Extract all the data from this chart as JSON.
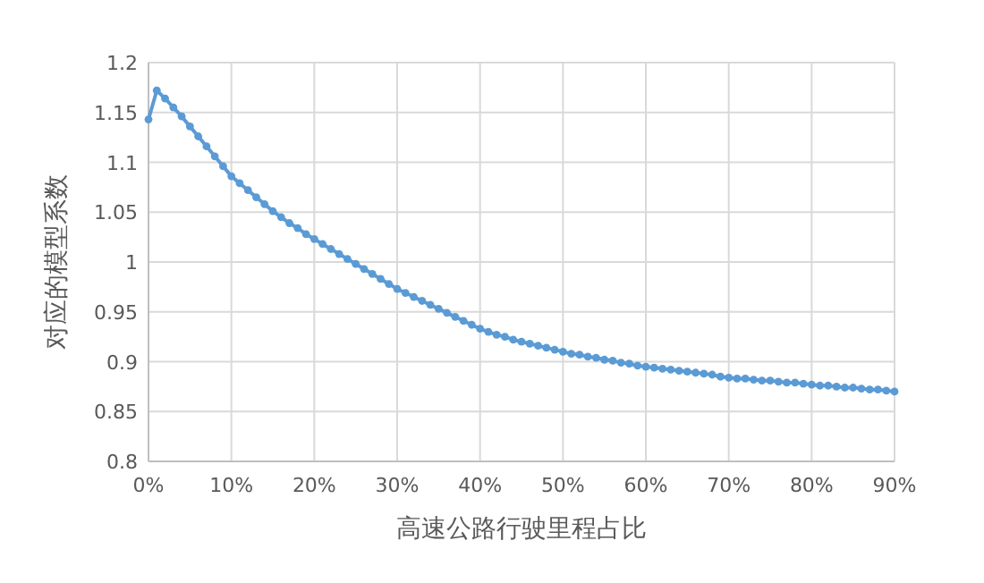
{
  "chart_data": {
    "type": "line",
    "xlabel": "高速公路行驶里程占比",
    "ylabel": "对应的模型系数",
    "x": [
      0,
      1,
      2,
      3,
      4,
      5,
      6,
      7,
      8,
      9,
      10,
      11,
      12,
      13,
      14,
      15,
      16,
      17,
      18,
      19,
      20,
      21,
      22,
      23,
      24,
      25,
      26,
      27,
      28,
      29,
      30,
      31,
      32,
      33,
      34,
      35,
      36,
      37,
      38,
      39,
      40,
      41,
      42,
      43,
      44,
      45,
      46,
      47,
      48,
      49,
      50,
      51,
      52,
      53,
      54,
      55,
      56,
      57,
      58,
      59,
      60,
      61,
      62,
      63,
      64,
      65,
      66,
      67,
      68,
      69,
      70,
      71,
      72,
      73,
      74,
      75,
      76,
      77,
      78,
      79,
      80,
      81,
      82,
      83,
      84,
      85,
      86,
      87,
      88,
      89,
      90
    ],
    "series": [
      {
        "color": "#5b9bd5",
        "values": [
          1.143,
          1.172,
          1.164,
          1.155,
          1.146,
          1.136,
          1.126,
          1.116,
          1.106,
          1.096,
          1.086,
          1.079,
          1.072,
          1.065,
          1.058,
          1.051,
          1.045,
          1.039,
          1.034,
          1.028,
          1.023,
          1.018,
          1.013,
          1.008,
          1.003,
          0.998,
          0.993,
          0.988,
          0.983,
          0.978,
          0.973,
          0.969,
          0.965,
          0.961,
          0.957,
          0.953,
          0.949,
          0.945,
          0.941,
          0.937,
          0.933,
          0.93,
          0.927,
          0.925,
          0.922,
          0.92,
          0.918,
          0.916,
          0.914,
          0.912,
          0.91,
          0.908,
          0.907,
          0.905,
          0.904,
          0.902,
          0.901,
          0.899,
          0.898,
          0.896,
          0.895,
          0.894,
          0.893,
          0.892,
          0.891,
          0.89,
          0.889,
          0.888,
          0.887,
          0.885,
          0.884,
          0.883,
          0.883,
          0.882,
          0.881,
          0.881,
          0.88,
          0.879,
          0.879,
          0.878,
          0.877,
          0.876,
          0.876,
          0.875,
          0.874,
          0.874,
          0.873,
          0.872,
          0.872,
          0.871,
          0.87
        ]
      }
    ],
    "xlim": [
      0,
      90
    ],
    "xticks": [
      {
        "value": 0,
        "label": "0%"
      },
      {
        "value": 10,
        "label": "10%"
      },
      {
        "value": 20,
        "label": "20%"
      },
      {
        "value": 30,
        "label": "30%"
      },
      {
        "value": 40,
        "label": "40%"
      },
      {
        "value": 50,
        "label": "50%"
      },
      {
        "value": 60,
        "label": "60%"
      },
      {
        "value": 70,
        "label": "70%"
      },
      {
        "value": 80,
        "label": "80%"
      },
      {
        "value": 90,
        "label": "90%"
      }
    ],
    "ylim": [
      0.8,
      1.2
    ],
    "yticks": [
      0.8,
      0.85,
      0.9,
      0.95,
      1,
      1.05,
      1.1,
      1.15,
      1.2
    ],
    "grid": true,
    "marker": "circle",
    "line_style": "solid"
  }
}
